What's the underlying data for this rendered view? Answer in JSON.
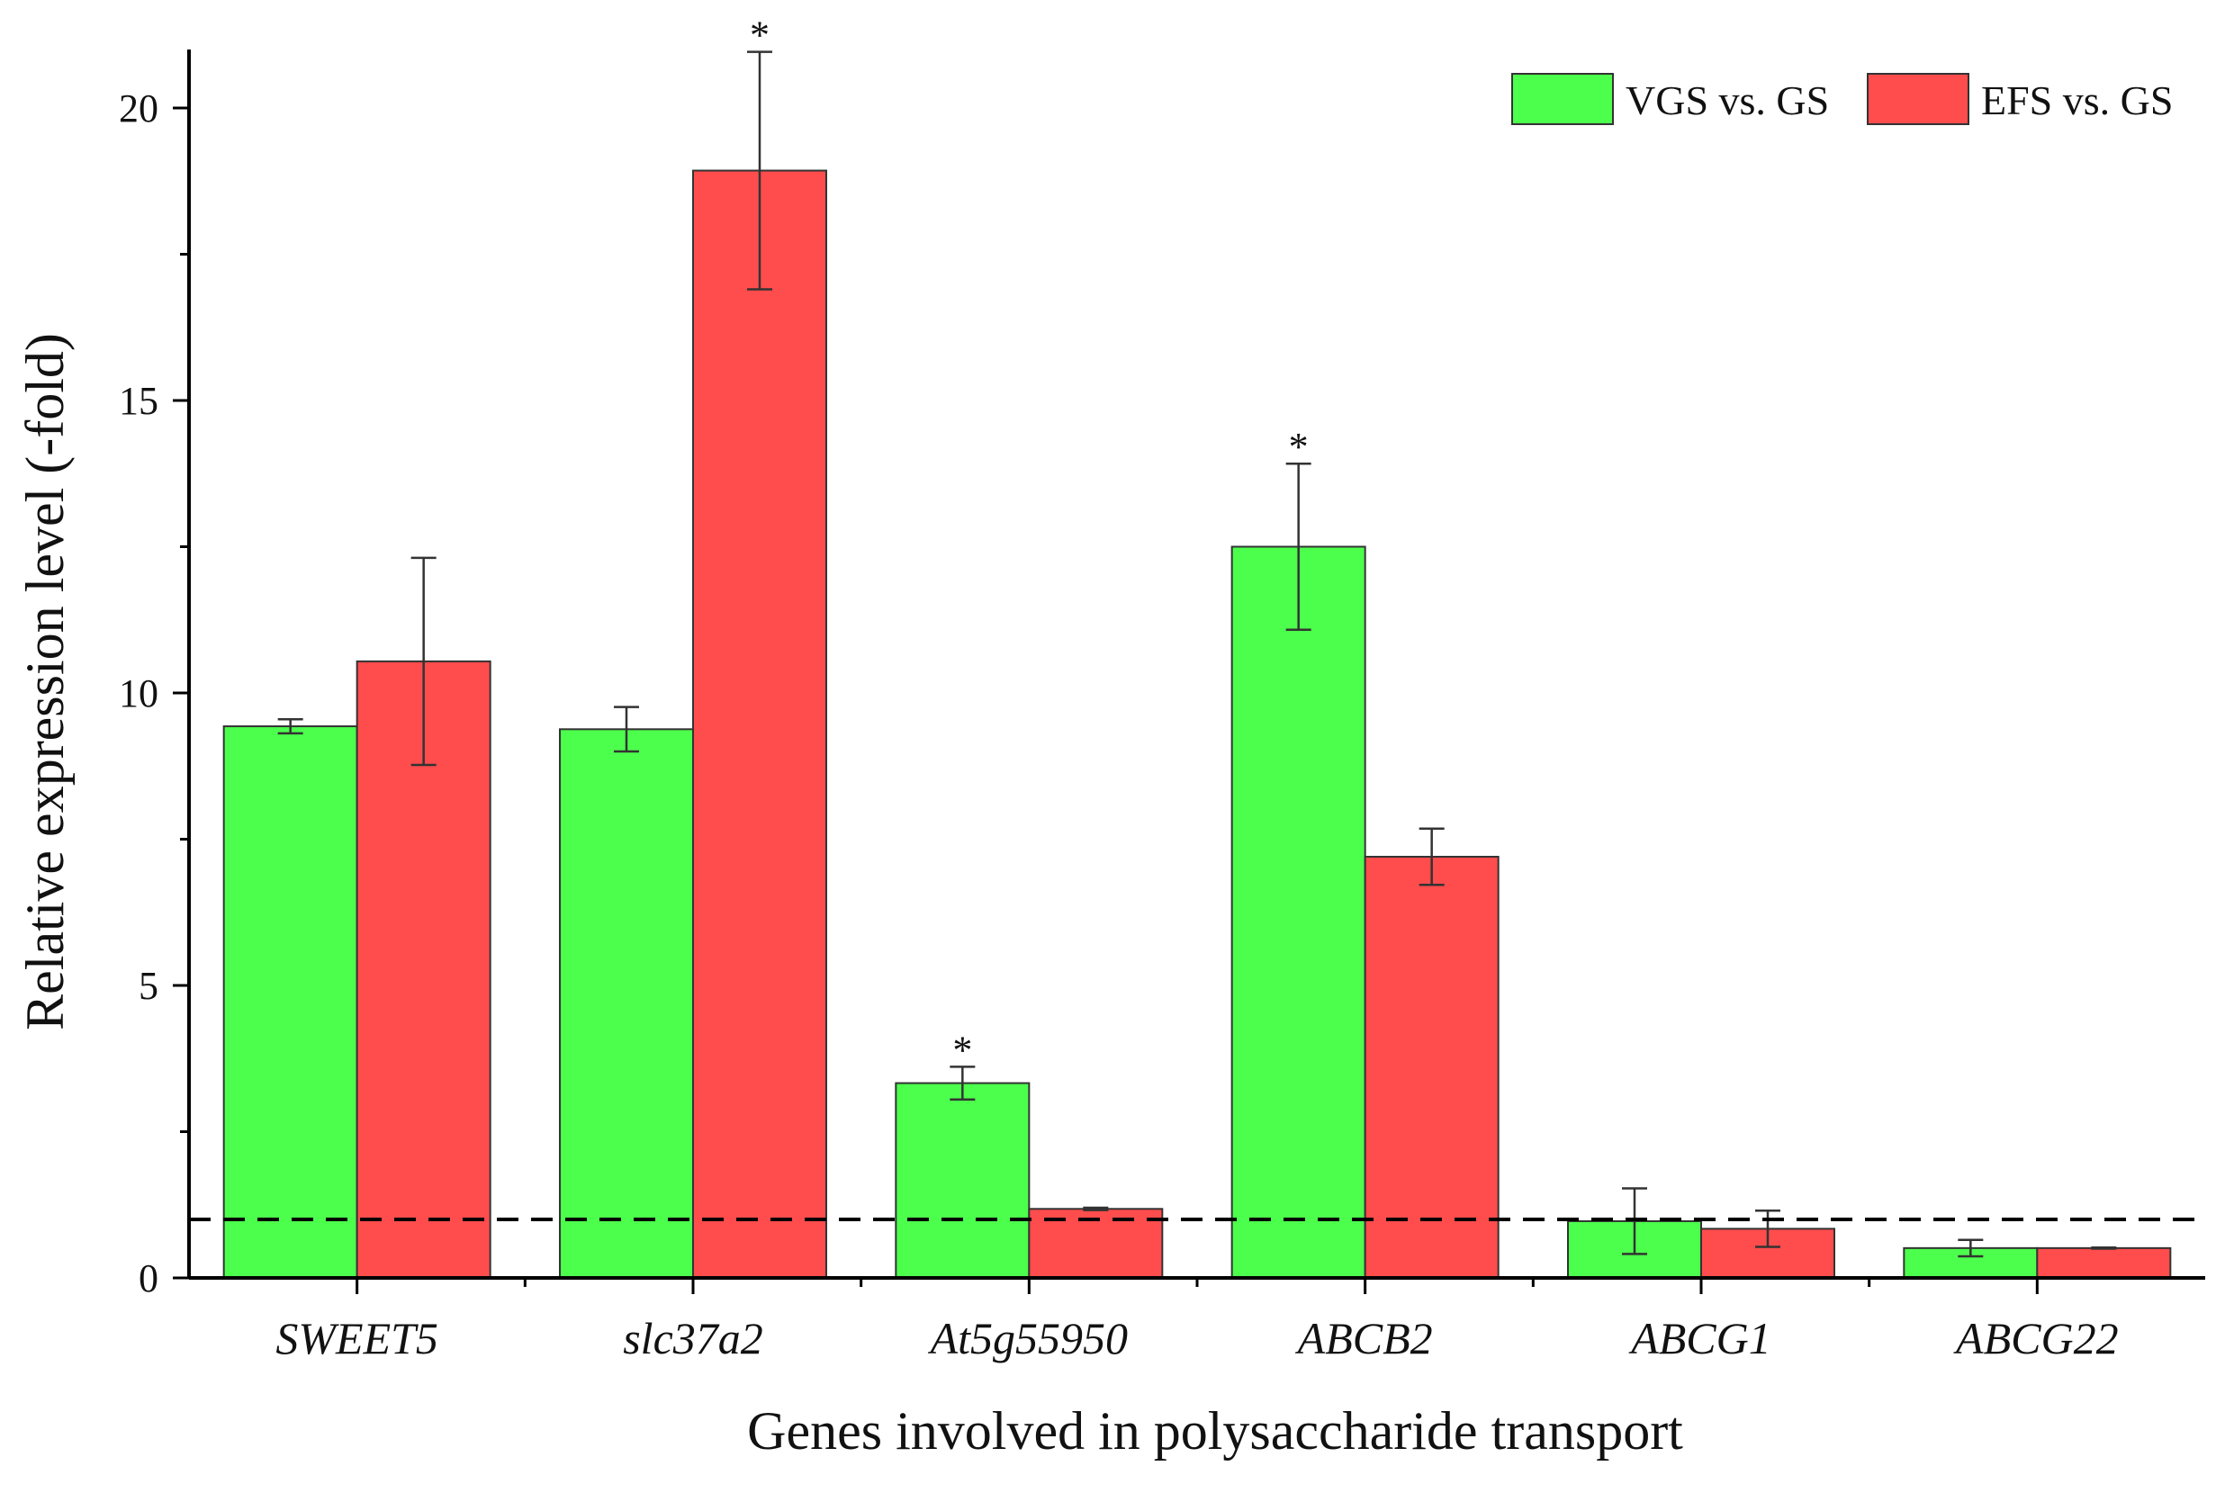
{
  "chart_data": {
    "type": "bar",
    "title": "",
    "xlabel": "Genes involved in polysaccharide transport",
    "ylabel": "Relative expression level (-fold)",
    "ylim": [
      0,
      21
    ],
    "yticks": [
      0,
      5,
      10,
      15,
      20
    ],
    "categories": [
      "SWEET5",
      "slc37a2",
      "At5g55950",
      "ABCB2",
      "ABCG1",
      "ABCG22"
    ],
    "series": [
      {
        "name": "VGS vs. GS",
        "color": "#4cff4c",
        "values": [
          9.43,
          9.38,
          3.33,
          12.5,
          0.97,
          0.51
        ],
        "errors": [
          0.12,
          0.38,
          0.28,
          1.42,
          0.56,
          0.14
        ],
        "significance": [
          "",
          "",
          "*",
          "*",
          "",
          ""
        ]
      },
      {
        "name": "EFS vs. GS",
        "color": "#ff4c4c",
        "values": [
          10.54,
          18.93,
          1.18,
          7.2,
          0.84,
          0.51
        ],
        "errors": [
          1.77,
          2.03,
          0.02,
          0.48,
          0.31,
          0.01
        ],
        "significance": [
          "",
          "*",
          "",
          "",
          "",
          ""
        ]
      }
    ],
    "reference_line": 1,
    "legend_position": "top-right",
    "grid": false
  }
}
